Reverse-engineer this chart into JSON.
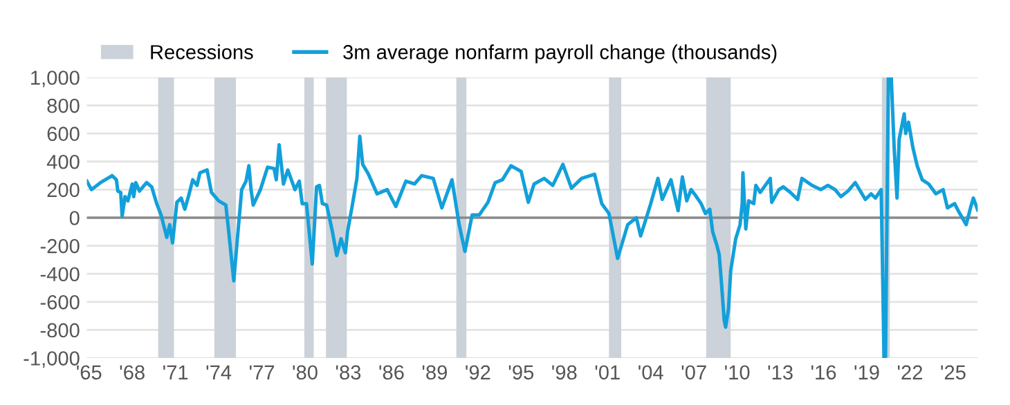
{
  "chart_data": {
    "type": "line",
    "x": [
      1964.85,
      1965.17,
      1965.8,
      1966.45,
      1966.6,
      1966.9,
      1967.0,
      1967.2,
      1967.3,
      1967.5,
      1967.7,
      1968.0,
      1968.1,
      1968.25,
      1968.5,
      1969.0,
      1969.35,
      1969.7,
      1970.0,
      1970.4,
      1970.6,
      1970.8,
      1971.1,
      1971.4,
      1971.65,
      1971.9,
      1972.2,
      1972.5,
      1972.7,
      1973.2,
      1973.5,
      1974.0,
      1974.5,
      1974.7,
      1975.05,
      1975.3,
      1975.6,
      1975.9,
      1976.1,
      1976.25,
      1976.4,
      1976.9,
      1977.4,
      1977.85,
      1978.0,
      1978.2,
      1978.5,
      1978.8,
      1979.3,
      1979.6,
      1979.8,
      1980.1,
      1980.5,
      1980.8,
      1981.0,
      1981.2,
      1981.5,
      1981.9,
      1982.2,
      1982.5,
      1982.8,
      1982.95,
      1983.3,
      1983.6,
      1983.8,
      1984.0,
      1984.4,
      1985.0,
      1985.7,
      1986.3,
      1987.0,
      1987.6,
      1988.1,
      1988.9,
      1989.5,
      1990.2,
      1990.7,
      1991.1,
      1991.6,
      1992.1,
      1992.7,
      1993.2,
      1993.7,
      1994.3,
      1995.0,
      1995.5,
      1995.9,
      1996.6,
      1997.2,
      1997.9,
      1998.5,
      1999.2,
      2000.1,
      2000.6,
      2001.1,
      2001.7,
      2002.4,
      2003.0,
      2003.3,
      2004.0,
      2004.5,
      2004.8,
      2005.4,
      2005.9,
      2006.2,
      2006.5,
      2006.8,
      2007.1,
      2007.5,
      2007.8,
      2008.1,
      2008.3,
      2008.6,
      2008.75,
      2008.9,
      2009.1,
      2009.2,
      2009.4,
      2009.55,
      2009.9,
      2010.2,
      2010.35,
      2010.4,
      2010.6,
      2010.8,
      2011.15,
      2011.3,
      2011.6,
      2012.3,
      2012.4,
      2012.9,
      2013.2,
      2013.7,
      2014.2,
      2014.5,
      2015.2,
      2015.8,
      2016.3,
      2016.8,
      2017.2,
      2017.7,
      2018.2,
      2018.9,
      2019.3,
      2019.6,
      2020.0,
      2020.2,
      2020.3,
      2020.5,
      2020.7,
      2020.9,
      2021.1,
      2021.25,
      2021.6,
      2021.7,
      2021.9,
      2022.2,
      2022.5,
      2022.85,
      2023.3,
      2023.8,
      2024.3,
      2024.6,
      2025.1,
      2025.4,
      2025.9,
      2026.2,
      2026.4,
      2026.7
    ],
    "series": [
      {
        "name": "3m average nonfarm payroll change (thousands)",
        "color": "#12a0da",
        "values": [
          260,
          200,
          250,
          290,
          300,
          270,
          190,
          180,
          10,
          150,
          120,
          240,
          150,
          250,
          190,
          250,
          220,
          100,
          20,
          -140,
          -50,
          -180,
          110,
          140,
          60,
          150,
          270,
          230,
          320,
          340,
          180,
          120,
          90,
          -100,
          -450,
          -150,
          200,
          260,
          370,
          200,
          90,
          200,
          360,
          350,
          270,
          520,
          240,
          340,
          200,
          260,
          100,
          100,
          -330,
          220,
          230,
          100,
          90,
          -100,
          -270,
          -150,
          -250,
          -100,
          100,
          280,
          580,
          380,
          310,
          170,
          200,
          80,
          260,
          240,
          300,
          280,
          70,
          270,
          -50,
          -240,
          20,
          20,
          110,
          250,
          270,
          370,
          330,
          110,
          240,
          280,
          230,
          380,
          210,
          280,
          310,
          100,
          30,
          -290,
          -50,
          0,
          -130,
          100,
          280,
          130,
          270,
          50,
          290,
          120,
          200,
          160,
          100,
          30,
          60,
          -100,
          -200,
          -260,
          -450,
          -730,
          -780,
          -650,
          -380,
          -150,
          -50,
          100,
          320,
          -80,
          120,
          100,
          230,
          180,
          280,
          110,
          200,
          220,
          180,
          130,
          280,
          230,
          200,
          230,
          200,
          150,
          190,
          250,
          130,
          170,
          140,
          200,
          -1000,
          -1000,
          1000,
          1000,
          500,
          140,
          560,
          740,
          600,
          680,
          500,
          370,
          270,
          240,
          170,
          200,
          70,
          100,
          40,
          -50,
          70,
          140,
          55
        ]
      }
    ],
    "xlim": [
      1964.85,
      2026.7
    ],
    "xticks": [
      {
        "value": 1965,
        "label": "'65"
      },
      {
        "value": 1968,
        "label": "'68"
      },
      {
        "value": 1971,
        "label": "'71"
      },
      {
        "value": 1974,
        "label": "'74"
      },
      {
        "value": 1977,
        "label": "'77"
      },
      {
        "value": 1980,
        "label": "'80"
      },
      {
        "value": 1983,
        "label": "'83"
      },
      {
        "value": 1986,
        "label": "'86"
      },
      {
        "value": 1989,
        "label": "'89"
      },
      {
        "value": 1992,
        "label": "'92"
      },
      {
        "value": 1995,
        "label": "'95"
      },
      {
        "value": 1998,
        "label": "'98"
      },
      {
        "value": 2001,
        "label": "'01"
      },
      {
        "value": 2004,
        "label": "'04"
      },
      {
        "value": 2007,
        "label": "'07"
      },
      {
        "value": 2010,
        "label": "'10"
      },
      {
        "value": 2013,
        "label": "'13"
      },
      {
        "value": 2016,
        "label": "'16"
      },
      {
        "value": 2019,
        "label": "'19"
      },
      {
        "value": 2022,
        "label": "'22"
      },
      {
        "value": 2025,
        "label": "'25"
      }
    ],
    "ylim": [
      -1000,
      1000
    ],
    "yticks": [
      {
        "value": -1000,
        "label": "-1,000"
      },
      -800,
      -600,
      -400,
      -200,
      0,
      200,
      400,
      600,
      800,
      {
        "value": 1000,
        "label": "1,000"
      }
    ],
    "grid": "y",
    "legend": "top left",
    "ref_lines": [
      {
        "axis": "y",
        "value": 0,
        "color": "#8a8a8a"
      }
    ],
    "bands": [
      {
        "axis": "x",
        "from": 1969.8,
        "to": 1970.9,
        "label": "Recessions",
        "color": "#cbd2d9"
      },
      {
        "axis": "x",
        "from": 1973.7,
        "to": 1975.2,
        "color": "#cbd2d9"
      },
      {
        "axis": "x",
        "from": 1979.95,
        "to": 1980.6,
        "color": "#cbd2d9"
      },
      {
        "axis": "x",
        "from": 1981.45,
        "to": 1982.9,
        "color": "#cbd2d9"
      },
      {
        "axis": "x",
        "from": 1990.5,
        "to": 1991.2,
        "color": "#cbd2d9"
      },
      {
        "axis": "x",
        "from": 2001.1,
        "to": 2001.95,
        "color": "#cbd2d9"
      },
      {
        "axis": "x",
        "from": 2007.85,
        "to": 2009.55,
        "color": "#cbd2d9"
      },
      {
        "axis": "x",
        "from": 2020.05,
        "to": 2020.6,
        "color": "#cbd2d9"
      }
    ]
  }
}
